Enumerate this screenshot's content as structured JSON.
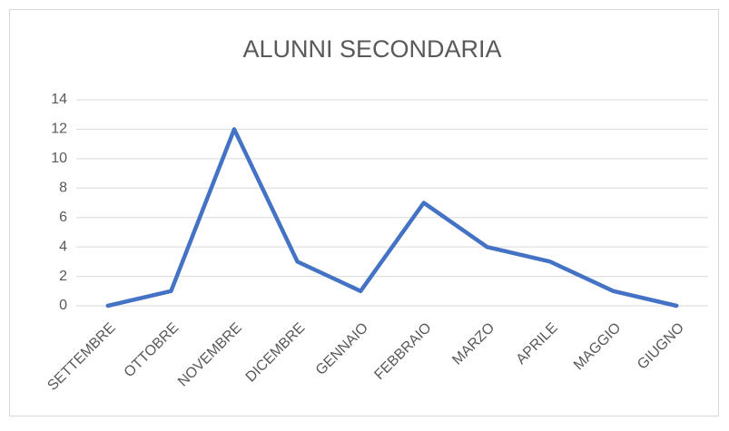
{
  "chart_data": {
    "type": "line",
    "title": "ALUNNI SECONDARIA",
    "categories": [
      "SETTEMBRE",
      "OTTOBRE",
      "NOVEMBRE",
      "DICEMBRE",
      "GENNAIO",
      "FEBBRAIO",
      "MARZO",
      "APRILE",
      "MAGGIO",
      "GIUGNO"
    ],
    "values": [
      0,
      1,
      12,
      3,
      1,
      7,
      4,
      3,
      1,
      0
    ],
    "color": "#4472c4",
    "ylim": [
      0,
      14
    ],
    "yticks": [
      0,
      2,
      4,
      6,
      8,
      10,
      12,
      14
    ],
    "grid": true
  }
}
